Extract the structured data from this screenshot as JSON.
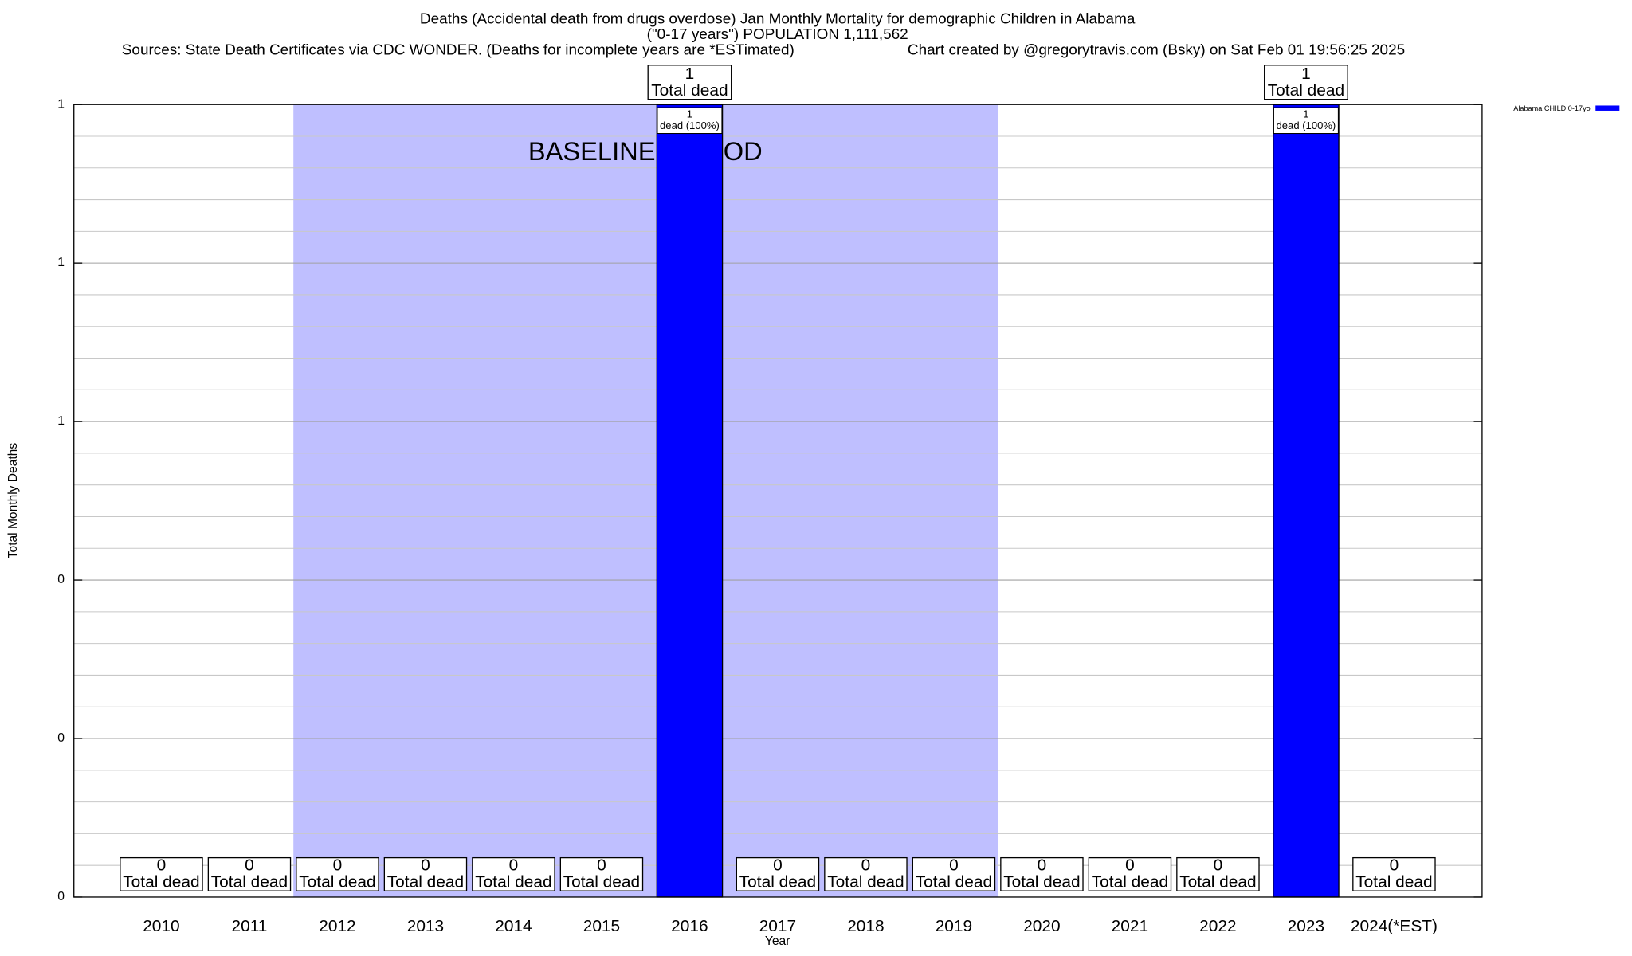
{
  "chart_data": {
    "type": "bar",
    "title": "Deaths (Accidental death from drugs overdose) Jan Monthly Mortality for demographic Children in Alabama",
    "subtitle": "(\"0-17 years\") POPULATION 1,111,562",
    "source": "Sources: State Death Certificates via CDC WONDER. (Deaths for incomplete years are *ESTimated)",
    "credit": "Chart created by @gregorytravis.com (Bsky) on Sat Feb 01 19:56:25 2025",
    "x_label": "Year",
    "y_label": "Total Monthly Deaths",
    "categories": [
      "2010",
      "2011",
      "2012",
      "2013",
      "2014",
      "2015",
      "2016",
      "2017",
      "2018",
      "2019",
      "2020",
      "2021",
      "2022",
      "2023",
      "2024(*EST)"
    ],
    "series": [
      {
        "name": "Alabama CHILD 0-17yo",
        "color": "#0000ff",
        "values": [
          0,
          0,
          0,
          0,
          0,
          0,
          1,
          0,
          0,
          0,
          0,
          0,
          0,
          1,
          0
        ],
        "share_labels": [
          null,
          null,
          null,
          null,
          null,
          null,
          "dead (100%)",
          null,
          null,
          null,
          null,
          null,
          null,
          "dead (100%)",
          null
        ]
      }
    ],
    "total_label": "Total dead",
    "baseline": {
      "label": "BASELINE PERIOD",
      "start": "2012",
      "end": "2019",
      "color": "#bfbfff"
    },
    "ylim": [
      0,
      1
    ],
    "yticks": [
      0,
      {
        "value": 0.2,
        "label": "0"
      },
      {
        "value": 0.4,
        "label": "0"
      },
      {
        "value": 0.6,
        "label": "1"
      },
      {
        "value": 0.8,
        "label": "1"
      },
      1
    ],
    "yticks_minor": [
      0.04,
      0.08,
      0.12,
      0.16,
      0.24,
      0.28,
      0.32,
      0.36,
      0.44,
      0.48,
      0.52,
      0.56,
      0.64,
      0.68,
      0.72,
      0.76,
      0.84,
      0.88,
      0.92,
      0.96
    ],
    "grid": true,
    "legend": "top-right"
  }
}
